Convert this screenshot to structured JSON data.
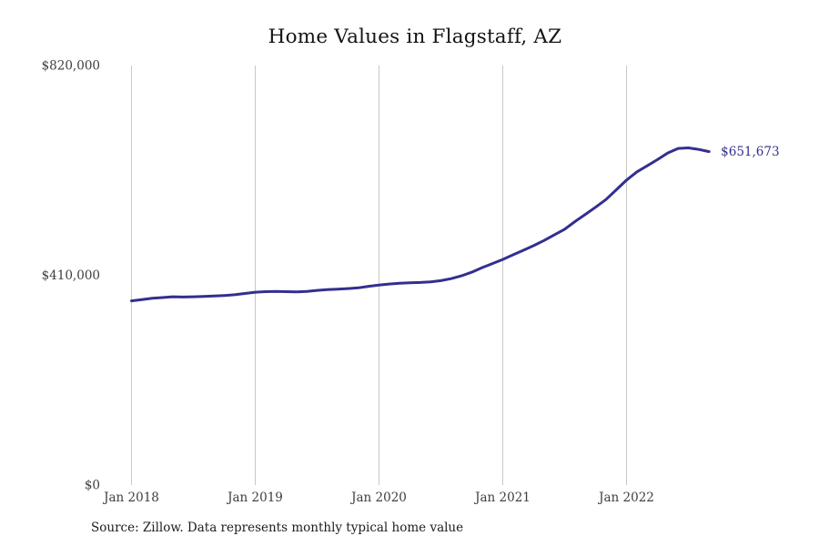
{
  "page": {
    "background": "#ffffff"
  },
  "source_note": "Source: Zillow. Data represents monthly typical home value",
  "colors": {
    "line": "#332f8f",
    "end_label": "#332f8f",
    "grid": "#c8c8c8",
    "tick_label": "#3d3d3d",
    "title": "#141414",
    "source": "#1c1c1c"
  },
  "chart_data": {
    "type": "line",
    "title": "Home Values in Flagstaff, AZ",
    "xlabel": "",
    "ylabel": "",
    "ylim": [
      0,
      820000
    ],
    "grid": "vertical-only",
    "legend": "none",
    "y_ticks": [
      {
        "value": 0,
        "label": "$0"
      },
      {
        "value": 410000,
        "label": "$410,000"
      },
      {
        "value": 820000,
        "label": "$820,000"
      }
    ],
    "x_ticks": [
      {
        "month_index": 0,
        "label": "Jan 2018"
      },
      {
        "month_index": 12,
        "label": "Jan 2019"
      },
      {
        "month_index": 24,
        "label": "Jan 2020"
      },
      {
        "month_index": 36,
        "label": "Jan 2021"
      },
      {
        "month_index": 48,
        "label": "Jan 2022"
      }
    ],
    "series": [
      {
        "name": "Monthly typical home value",
        "start_month": "Jan 2018",
        "end_month": "Sep 2022",
        "last_value_label": "$651,673",
        "months": [
          "2018-01",
          "2018-02",
          "2018-03",
          "2018-04",
          "2018-05",
          "2018-06",
          "2018-07",
          "2018-08",
          "2018-09",
          "2018-10",
          "2018-11",
          "2018-12",
          "2019-01",
          "2019-02",
          "2019-03",
          "2019-04",
          "2019-05",
          "2019-06",
          "2019-07",
          "2019-08",
          "2019-09",
          "2019-10",
          "2019-11",
          "2019-12",
          "2020-01",
          "2020-02",
          "2020-03",
          "2020-04",
          "2020-05",
          "2020-06",
          "2020-07",
          "2020-08",
          "2020-09",
          "2020-10",
          "2020-11",
          "2020-12",
          "2021-01",
          "2021-02",
          "2021-03",
          "2021-04",
          "2021-05",
          "2021-06",
          "2021-07",
          "2021-08",
          "2021-09",
          "2021-10",
          "2021-11",
          "2021-12",
          "2022-01",
          "2022-02",
          "2022-03",
          "2022-04",
          "2022-05",
          "2022-06",
          "2022-07",
          "2022-08",
          "2022-09"
        ],
        "values": [
          360000,
          362500,
          365000,
          366500,
          368000,
          367500,
          368000,
          368500,
          369500,
          370500,
          372000,
          374500,
          377000,
          378000,
          378500,
          378000,
          377500,
          378500,
          380500,
          382000,
          383000,
          384000,
          385500,
          388500,
          391000,
          393000,
          394500,
          395500,
          396000,
          397000,
          399500,
          403500,
          409000,
          416000,
          425000,
          433000,
          441000,
          450000,
          459000,
          468000,
          478000,
          489000,
          500000,
          515000,
          529000,
          543000,
          558000,
          577000,
          596000,
          612000,
          624000,
          636000,
          649000,
          658000,
          659000,
          656000,
          651673
        ]
      }
    ]
  }
}
